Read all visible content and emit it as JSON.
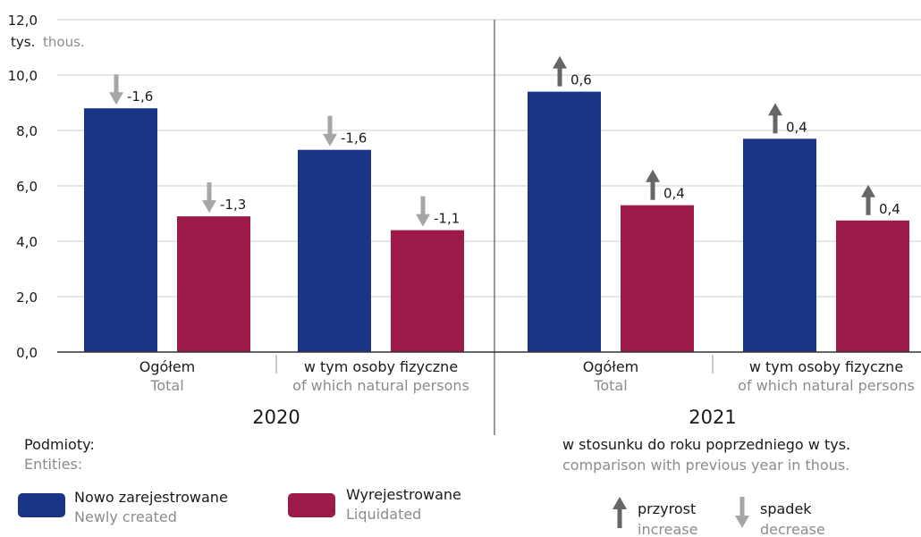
{
  "chart_data": {
    "type": "bar",
    "unit_label": "tys.",
    "unit_label_en": "thous.",
    "yticks": [
      "0,0",
      "2,0",
      "4,0",
      "6,0",
      "8,0",
      "10,0",
      "12,0"
    ],
    "ylim": [
      0,
      12
    ],
    "years": [
      "2020",
      "2021"
    ],
    "groups": [
      {
        "year": "2020",
        "label": "Ogółem",
        "label_en": "Total",
        "bars": [
          {
            "series": "Nowo zarejestrowane",
            "value": 8.8,
            "change": "-1,6",
            "direction": "down"
          },
          {
            "series": "Wyrejestrowane",
            "value": 4.9,
            "change": "-1,3",
            "direction": "down"
          }
        ]
      },
      {
        "year": "2020",
        "label": "w tym osoby fizyczne",
        "label_en": "of which natural persons",
        "bars": [
          {
            "series": "Nowo zarejestrowane",
            "value": 7.3,
            "change": "-1,6",
            "direction": "down"
          },
          {
            "series": "Wyrejestrowane",
            "value": 4.4,
            "change": "-1,1",
            "direction": "down"
          }
        ]
      },
      {
        "year": "2021",
        "label": "Ogółem",
        "label_en": "Total",
        "bars": [
          {
            "series": "Nowo zarejestrowane",
            "value": 9.4,
            "change": "0,6",
            "direction": "up"
          },
          {
            "series": "Wyrejestrowane",
            "value": 5.3,
            "change": "0,4",
            "direction": "up"
          }
        ]
      },
      {
        "year": "2021",
        "label": "w tym osoby fizyczne",
        "label_en": "of which natural persons",
        "bars": [
          {
            "series": "Nowo zarejestrowane",
            "value": 7.7,
            "change": "0,4",
            "direction": "up"
          },
          {
            "series": "Wyrejestrowane",
            "value": 4.75,
            "change": "0,4",
            "direction": "up"
          }
        ]
      }
    ],
    "series": [
      {
        "name": "Nowo zarejestrowane",
        "name_en": "Newly created",
        "color": "#1a3588"
      },
      {
        "name": "Wyrejestrowane",
        "name_en": "Liquidated",
        "color": "#9b1a4a"
      }
    ],
    "grid": true
  },
  "legend": {
    "title": "Podmioty:",
    "title_en": "Entities:"
  },
  "comparison": {
    "title": "w stosunku do roku poprzedniego w tys.",
    "title_en": "comparison with previous year in thous.",
    "increase": "przyrost",
    "increase_en": "increase",
    "decrease": "spadek",
    "decrease_en": "decrease"
  },
  "colors": {
    "arrow_up": "#666666",
    "arrow_down": "#a6a6a6",
    "grid": "#cfcfcf",
    "axis": "#333333"
  }
}
